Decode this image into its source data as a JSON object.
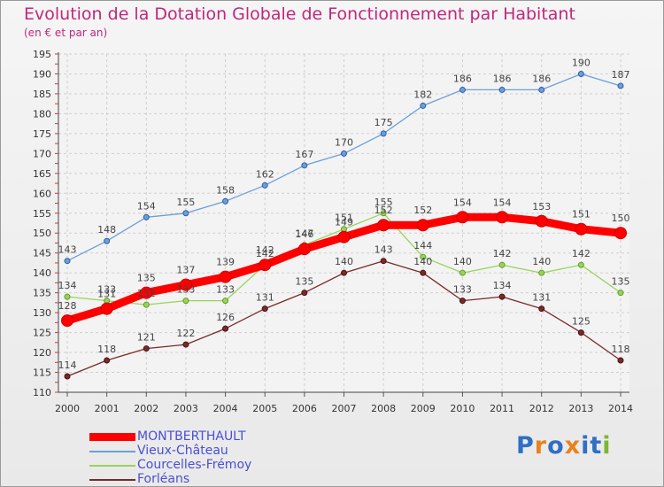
{
  "title": "Evolution de la Dotation Globale de Fonctionnement par Habitant",
  "subtitle": "(en € et par an)",
  "brand": {
    "text": "Proxiti",
    "letters": [
      {
        "ch": "P",
        "color": "#2f6fc4"
      },
      {
        "ch": "r",
        "color": "#e8821c"
      },
      {
        "ch": "o",
        "color": "#2f6fc4"
      },
      {
        "ch": "x",
        "color": "#e8821c"
      },
      {
        "ch": "i",
        "color": "#2f6fc4"
      },
      {
        "ch": "t",
        "color": "#2f6fc4"
      },
      {
        "ch": "i",
        "color": "#7ab82e"
      }
    ]
  },
  "chart_data": {
    "type": "line",
    "x": [
      "2000",
      "2001",
      "2002",
      "2003",
      "2004",
      "2005",
      "2006",
      "2007",
      "2008",
      "2009",
      "2010",
      "2011",
      "2012",
      "2013",
      "2014"
    ],
    "ylim": [
      110,
      195
    ],
    "yticks": [
      110,
      115,
      120,
      125,
      130,
      135,
      140,
      145,
      150,
      155,
      160,
      165,
      170,
      175,
      180,
      185,
      190,
      195
    ],
    "grid": true,
    "legend_position": "bottom-left",
    "series": [
      {
        "name": "MONTBERTHAULT",
        "color": "#ff0000",
        "style": "bold",
        "values": [
          128,
          131,
          135,
          137,
          139,
          142,
          146,
          149,
          152,
          152,
          154,
          154,
          153,
          151,
          150
        ]
      },
      {
        "name": "Vieux-Château",
        "color": "#6a9fd8",
        "style": "thin",
        "values": [
          143,
          148,
          154,
          155,
          158,
          162,
          167,
          170,
          175,
          182,
          186,
          186,
          186,
          190,
          187
        ]
      },
      {
        "name": "Courcelles-Frémoy",
        "color": "#9ad35a",
        "style": "thin",
        "values": [
          134,
          133,
          132,
          133,
          133,
          142,
          147,
          151,
          155,
          144,
          140,
          142,
          140,
          142,
          135
        ]
      },
      {
        "name": "Forléans",
        "color": "#7a2a2a",
        "style": "thin",
        "values": [
          114,
          118,
          121,
          122,
          126,
          131,
          135,
          140,
          143,
          140,
          133,
          134,
          131,
          125,
          118
        ]
      }
    ]
  }
}
